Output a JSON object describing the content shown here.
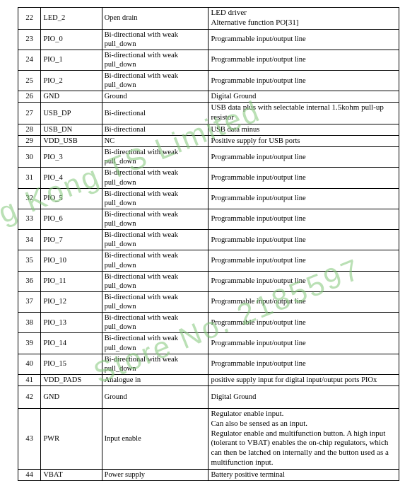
{
  "watermarks": {
    "top": "ng Kong TS Limited",
    "bottom": "Store No. 2185597"
  },
  "table": {
    "border_color": "#000000",
    "background_color": "#ffffff",
    "text_color": "#000000",
    "font_family": "Times New Roman",
    "watermark_color": "#83c77a",
    "col_widths_pct": [
      6,
      16,
      28,
      50
    ],
    "rows": [
      {
        "num": "22",
        "name": "LED_2",
        "type": "Open drain",
        "desc": "LED driver\nAlternative function PO[31]"
      },
      {
        "num": "23",
        "name": "PIO_0",
        "type": "Bi-directional with weak pull_down",
        "desc": "Programmable input/output line"
      },
      {
        "num": "24",
        "name": "PIO_1",
        "type": "Bi-directional with weak pull_down",
        "desc": "Programmable input/output line"
      },
      {
        "num": "25",
        "name": "PIO_2",
        "type": "Bi-directional with weak pull_down",
        "desc": "Programmable input/output line"
      },
      {
        "num": "26",
        "name": "GND",
        "type": "Ground",
        "desc": "Digital Ground"
      },
      {
        "num": "27",
        "name": "USB_DP",
        "type": "Bi-directional",
        "desc": "USB data plus with selectable internal 1.5kohm pull-up resistor"
      },
      {
        "num": "28",
        "name": "USB_DN",
        "type": "Bi-directional",
        "desc": "USB data minus"
      },
      {
        "num": "29",
        "name": "VDD_USB",
        "type": "NC",
        "desc": "Positive supply for USB ports"
      },
      {
        "num": "30",
        "name": "PIO_3",
        "type": "Bi-directional with weak pull_down",
        "desc": "Programmable input/output line"
      },
      {
        "num": "31",
        "name": "PIO_4",
        "type": "Bi-directional with weak pull_down",
        "desc": "Programmable input/output line"
      },
      {
        "num": "32",
        "name": "PIO_5",
        "type": "Bi-directional with weak pull_down",
        "desc": "Programmable input/output line"
      },
      {
        "num": "33",
        "name": "PIO_6",
        "type": "Bi-directional with weak pull_down",
        "desc": "Programmable input/output line"
      },
      {
        "num": "34",
        "name": "PIO_7",
        "type": "Bi-directional with weak pull_down",
        "desc": "Programmable input/output line"
      },
      {
        "num": "35",
        "name": "PIO_10",
        "type": "Bi-directional with weak pull_down",
        "desc": "Programmable input/output line"
      },
      {
        "num": "36",
        "name": "PIO_11",
        "type": "Bi-directional with weak pull_down",
        "desc": "Programmable input/output line"
      },
      {
        "num": "37",
        "name": "PIO_12",
        "type": "Bi-directional with weak pull_down",
        "desc": "Programmable input/output line"
      },
      {
        "num": "38",
        "name": "PIO_13",
        "type": "Bi-directional with weak pull_down",
        "desc": "Programmable input/output line"
      },
      {
        "num": "39",
        "name": "PIO_14",
        "type": "Bi-directional with weak pull_down",
        "desc": "Programmable input/output line"
      },
      {
        "num": "40",
        "name": "PIO_15",
        "type": "Bi-directional with weak pull_down",
        "desc": "Programmable input/output line"
      },
      {
        "num": "41",
        "name": "VDD_PADS",
        "type": "Analogue in",
        "desc": "positive supply input for digital input/output ports PIOx"
      },
      {
        "num": "42",
        "name": "GND",
        "type": "Ground",
        "desc": "Digital Ground"
      },
      {
        "num": "43",
        "name": "PWR",
        "type": "Input enable",
        "desc": "Regulator enable input.\nCan also be sensed as an input.\nRegulator enable and multifunction button. A high input (tolerant to VBAT) enables the on-chip regulators, which can then be latched on internally and the button used as a multifunction input."
      },
      {
        "num": "44",
        "name": "VBAT",
        "type": "Power supply",
        "desc": "Battery positive terminal"
      }
    ]
  }
}
